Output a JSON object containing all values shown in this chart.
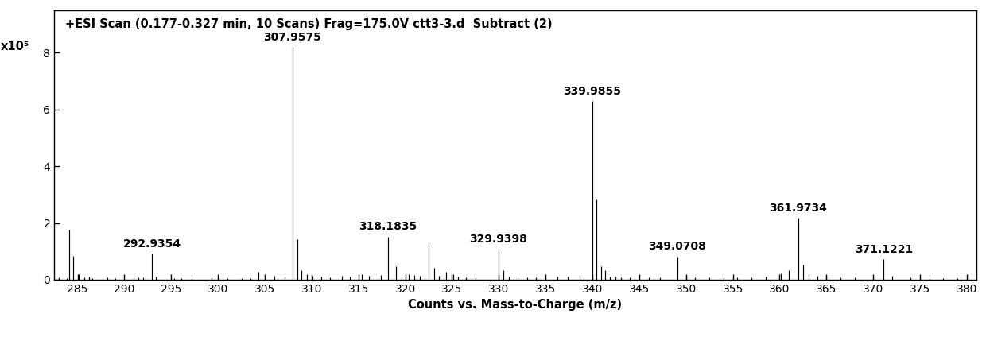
{
  "title": "+ESI Scan (0.177-0.327 min, 10 Scans) Frag=175.0V ctt3-3.d  Subtract (2)",
  "xlabel": "Counts vs. Mass-to-Charge (m/z)",
  "ylabel": "x10⁵",
  "xlim": [
    282.5,
    381
  ],
  "ylim": [
    0,
    9.5
  ],
  "xticks": [
    285,
    290,
    295,
    300,
    305,
    310,
    315,
    320,
    325,
    330,
    335,
    340,
    345,
    350,
    355,
    360,
    365,
    370,
    375,
    380
  ],
  "yticks": [
    0,
    2,
    4,
    6,
    8
  ],
  "peaks": [
    {
      "mz": 283.0,
      "intensity": 0.07,
      "label": null
    },
    {
      "mz": 283.8,
      "intensity": 0.05,
      "label": null
    },
    {
      "mz": 284.1,
      "intensity": 1.75,
      "label": null
    },
    {
      "mz": 284.55,
      "intensity": 0.85,
      "label": null
    },
    {
      "mz": 285.1,
      "intensity": 0.18,
      "label": null
    },
    {
      "mz": 285.7,
      "intensity": 0.07,
      "label": null
    },
    {
      "mz": 286.2,
      "intensity": 0.1,
      "label": null
    },
    {
      "mz": 286.6,
      "intensity": 0.06,
      "label": null
    },
    {
      "mz": 288.2,
      "intensity": 0.07,
      "label": null
    },
    {
      "mz": 289.0,
      "intensity": 0.06,
      "label": null
    },
    {
      "mz": 291.0,
      "intensity": 0.09,
      "label": null
    },
    {
      "mz": 291.5,
      "intensity": 0.07,
      "label": null
    },
    {
      "mz": 292.0,
      "intensity": 0.07,
      "label": null
    },
    {
      "mz": 292.9354,
      "intensity": 0.92,
      "label": "292.9354"
    },
    {
      "mz": 293.4,
      "intensity": 0.11,
      "label": null
    },
    {
      "mz": 295.3,
      "intensity": 0.06,
      "label": null
    },
    {
      "mz": 296.1,
      "intensity": 0.05,
      "label": null
    },
    {
      "mz": 297.2,
      "intensity": 0.06,
      "label": null
    },
    {
      "mz": 299.3,
      "intensity": 0.07,
      "label": null
    },
    {
      "mz": 300.1,
      "intensity": 0.07,
      "label": null
    },
    {
      "mz": 301.0,
      "intensity": 0.06,
      "label": null
    },
    {
      "mz": 302.5,
      "intensity": 0.06,
      "label": null
    },
    {
      "mz": 303.5,
      "intensity": 0.06,
      "label": null
    },
    {
      "mz": 304.3,
      "intensity": 0.28,
      "label": null
    },
    {
      "mz": 305.0,
      "intensity": 0.16,
      "label": null
    },
    {
      "mz": 306.0,
      "intensity": 0.13,
      "label": null
    },
    {
      "mz": 307.1,
      "intensity": 0.11,
      "label": null
    },
    {
      "mz": 307.9575,
      "intensity": 8.2,
      "label": "307.9575"
    },
    {
      "mz": 308.5,
      "intensity": 1.42,
      "label": null
    },
    {
      "mz": 308.9,
      "intensity": 0.32,
      "label": null
    },
    {
      "mz": 309.5,
      "intensity": 0.2,
      "label": null
    },
    {
      "mz": 310.1,
      "intensity": 0.13,
      "label": null
    },
    {
      "mz": 311.0,
      "intensity": 0.11,
      "label": null
    },
    {
      "mz": 312.0,
      "intensity": 0.09,
      "label": null
    },
    {
      "mz": 313.2,
      "intensity": 0.13,
      "label": null
    },
    {
      "mz": 314.1,
      "intensity": 0.11,
      "label": null
    },
    {
      "mz": 315.4,
      "intensity": 0.2,
      "label": null
    },
    {
      "mz": 316.1,
      "intensity": 0.14,
      "label": null
    },
    {
      "mz": 317.4,
      "intensity": 0.17,
      "label": null
    },
    {
      "mz": 318.1835,
      "intensity": 1.52,
      "label": "318.1835"
    },
    {
      "mz": 319.0,
      "intensity": 0.48,
      "label": null
    },
    {
      "mz": 319.6,
      "intensity": 0.11,
      "label": null
    },
    {
      "mz": 320.4,
      "intensity": 0.2,
      "label": null
    },
    {
      "mz": 321.0,
      "intensity": 0.16,
      "label": null
    },
    {
      "mz": 321.6,
      "intensity": 0.13,
      "label": null
    },
    {
      "mz": 322.5,
      "intensity": 1.32,
      "label": null
    },
    {
      "mz": 323.1,
      "intensity": 0.42,
      "label": null
    },
    {
      "mz": 323.6,
      "intensity": 0.14,
      "label": null
    },
    {
      "mz": 324.4,
      "intensity": 0.28,
      "label": null
    },
    {
      "mz": 325.1,
      "intensity": 0.18,
      "label": null
    },
    {
      "mz": 325.6,
      "intensity": 0.11,
      "label": null
    },
    {
      "mz": 326.5,
      "intensity": 0.09,
      "label": null
    },
    {
      "mz": 327.5,
      "intensity": 0.09,
      "label": null
    },
    {
      "mz": 329.9398,
      "intensity": 1.08,
      "label": "329.9398"
    },
    {
      "mz": 330.5,
      "intensity": 0.32,
      "label": null
    },
    {
      "mz": 331.1,
      "intensity": 0.11,
      "label": null
    },
    {
      "mz": 332.0,
      "intensity": 0.09,
      "label": null
    },
    {
      "mz": 333.0,
      "intensity": 0.09,
      "label": null
    },
    {
      "mz": 334.0,
      "intensity": 0.09,
      "label": null
    },
    {
      "mz": 335.0,
      "intensity": 0.09,
      "label": null
    },
    {
      "mz": 336.3,
      "intensity": 0.11,
      "label": null
    },
    {
      "mz": 337.4,
      "intensity": 0.11,
      "label": null
    },
    {
      "mz": 338.6,
      "intensity": 0.16,
      "label": null
    },
    {
      "mz": 339.9855,
      "intensity": 6.3,
      "label": "339.9855"
    },
    {
      "mz": 340.45,
      "intensity": 2.82,
      "label": null
    },
    {
      "mz": 340.9,
      "intensity": 0.48,
      "label": null
    },
    {
      "mz": 341.4,
      "intensity": 0.32,
      "label": null
    },
    {
      "mz": 341.85,
      "intensity": 0.11,
      "label": null
    },
    {
      "mz": 342.5,
      "intensity": 0.11,
      "label": null
    },
    {
      "mz": 343.1,
      "intensity": 0.09,
      "label": null
    },
    {
      "mz": 344.0,
      "intensity": 0.07,
      "label": null
    },
    {
      "mz": 346.0,
      "intensity": 0.07,
      "label": null
    },
    {
      "mz": 347.2,
      "intensity": 0.09,
      "label": null
    },
    {
      "mz": 349.0708,
      "intensity": 0.82,
      "label": "349.0708"
    },
    {
      "mz": 350.0,
      "intensity": 0.11,
      "label": null
    },
    {
      "mz": 351.0,
      "intensity": 0.09,
      "label": null
    },
    {
      "mz": 352.5,
      "intensity": 0.07,
      "label": null
    },
    {
      "mz": 354.0,
      "intensity": 0.07,
      "label": null
    },
    {
      "mz": 355.5,
      "intensity": 0.09,
      "label": null
    },
    {
      "mz": 357.0,
      "intensity": 0.09,
      "label": null
    },
    {
      "mz": 358.5,
      "intensity": 0.11,
      "label": null
    },
    {
      "mz": 360.1,
      "intensity": 0.23,
      "label": null
    },
    {
      "mz": 361.0,
      "intensity": 0.32,
      "label": null
    },
    {
      "mz": 361.9734,
      "intensity": 2.18,
      "label": "361.9734"
    },
    {
      "mz": 362.55,
      "intensity": 0.52,
      "label": null
    },
    {
      "mz": 363.1,
      "intensity": 0.18,
      "label": null
    },
    {
      "mz": 364.0,
      "intensity": 0.13,
      "label": null
    },
    {
      "mz": 365.0,
      "intensity": 0.11,
      "label": null
    },
    {
      "mz": 366.5,
      "intensity": 0.09,
      "label": null
    },
    {
      "mz": 368.0,
      "intensity": 0.07,
      "label": null
    },
    {
      "mz": 371.1221,
      "intensity": 0.72,
      "label": "371.1221"
    },
    {
      "mz": 372.0,
      "intensity": 0.13,
      "label": null
    },
    {
      "mz": 374.0,
      "intensity": 0.07,
      "label": null
    },
    {
      "mz": 376.0,
      "intensity": 0.06,
      "label": null
    },
    {
      "mz": 377.5,
      "intensity": 0.06,
      "label": null
    },
    {
      "mz": 379.0,
      "intensity": 0.06,
      "label": null
    }
  ],
  "line_color": "#000000",
  "background_color": "#ffffff",
  "title_fontsize": 10.5,
  "label_fontsize": 10,
  "tick_fontsize": 10,
  "axis_label_fontsize": 10.5
}
